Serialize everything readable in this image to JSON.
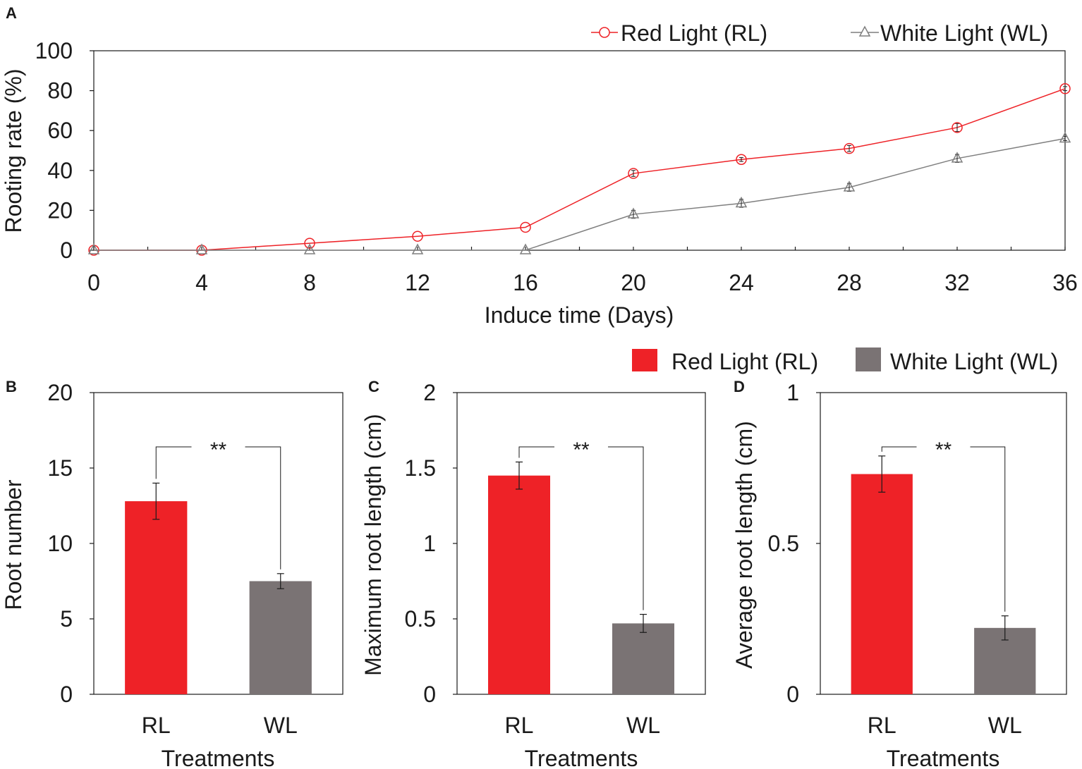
{
  "colors": {
    "red": "#ee2227",
    "white_light": "#7a7374",
    "red_line": "#ee2227",
    "gray_line": "#7f7f7f",
    "axis": "#1a1a1a"
  },
  "chart_data": [
    {
      "panel": "A",
      "type": "line",
      "xlabel": "Induce time (Days)",
      "ylabel": "Rooting rate (%)",
      "xlim": [
        0,
        36
      ],
      "ylim": [
        0,
        100
      ],
      "x_ticks": [
        "0",
        "4",
        "8",
        "12",
        "16",
        "20",
        "24",
        "28",
        "32",
        "36"
      ],
      "y_ticks": [
        "0",
        "20",
        "40",
        "60",
        "80",
        "100"
      ],
      "x": [
        0,
        4,
        8,
        12,
        16,
        20,
        24,
        28,
        32,
        36
      ],
      "legend": "top-right",
      "series": [
        {
          "name": "Red Light (RL)",
          "marker": "circle",
          "values": [
            0,
            0,
            3.5,
            7,
            11.5,
            38.5,
            45.5,
            51,
            61.5,
            81
          ],
          "errors": [
            0,
            0,
            0,
            0,
            0,
            1.5,
            1,
            1.5,
            2,
            1
          ]
        },
        {
          "name": "White Light (WL)",
          "marker": "triangle",
          "values": [
            0,
            0,
            0,
            0,
            0,
            18,
            23.5,
            31.5,
            46,
            56
          ],
          "errors": [
            0,
            0,
            0,
            0,
            0,
            2,
            2,
            2,
            2,
            1
          ]
        }
      ]
    },
    {
      "panel": "B",
      "type": "bar",
      "xlabel": "Treatments",
      "ylabel": "Root number",
      "categories": [
        "RL",
        "WL"
      ],
      "values": [
        12.8,
        7.5
      ],
      "errors": [
        1.2,
        0.5
      ],
      "ylim": [
        0,
        20
      ],
      "y_ticks": [
        "0",
        "5",
        "10",
        "15",
        "20"
      ],
      "significance": "**"
    },
    {
      "panel": "C",
      "type": "bar",
      "xlabel": "Treatments",
      "ylabel": "Maximum root length (cm)",
      "categories": [
        "RL",
        "WL"
      ],
      "values": [
        1.45,
        0.47
      ],
      "errors": [
        0.09,
        0.06
      ],
      "ylim": [
        0,
        2
      ],
      "y_ticks": [
        "0",
        "0.5",
        "1",
        "1.5",
        "2"
      ],
      "significance": "**"
    },
    {
      "panel": "D",
      "type": "bar",
      "xlabel": "Treatments",
      "ylabel": "Average root length (cm)",
      "categories": [
        "RL",
        "WL"
      ],
      "values": [
        0.73,
        0.22
      ],
      "errors": [
        0.06,
        0.04
      ],
      "ylim": [
        0,
        1
      ],
      "y_ticks": [
        "0",
        "0.5",
        "1"
      ],
      "significance": "**"
    }
  ],
  "bar_legend": {
    "items": [
      "Red Light (RL)",
      "White Light (WL)"
    ],
    "placement": "top-right"
  }
}
